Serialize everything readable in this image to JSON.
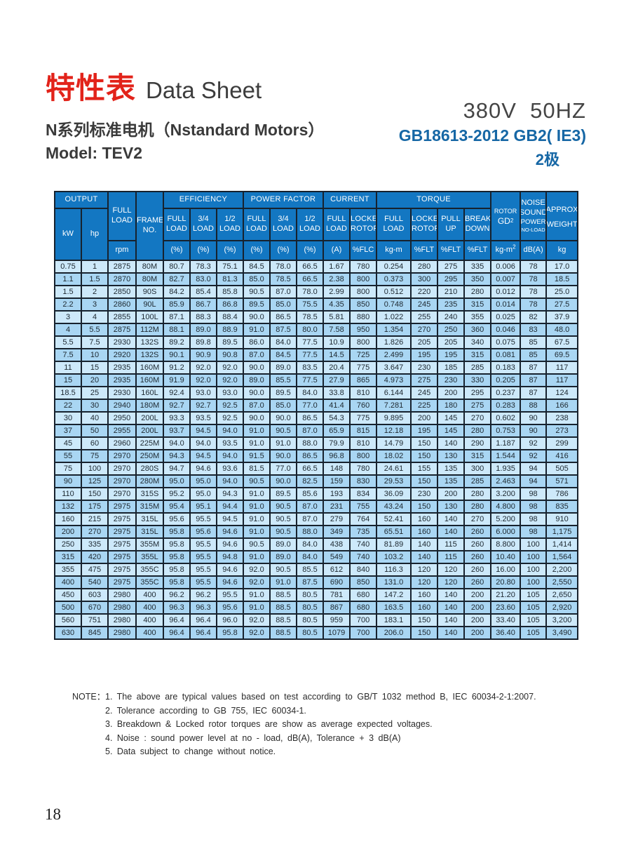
{
  "header": {
    "title_cn": "特性表",
    "title_en": "Data Sheet",
    "subtitle": "N系列标准电机（Nstandard Motors）",
    "model": "Model: TEV2",
    "voltage": "380V  50HZ",
    "standard": "GB18613-2012 GB2( IE3)",
    "poles": "2极"
  },
  "colors": {
    "header_blue": "#1377c2",
    "row_light": "#cde9fa",
    "row_dark": "#a9d6f3",
    "border": "#17222e",
    "title_red": "#e2231a",
    "standard_blue": "#1667a5"
  },
  "table": {
    "header": {
      "output": "OUTPUT",
      "kw": "kW",
      "hp": "hp",
      "full_load": "FULL\nLOAD",
      "rpm": "rpm",
      "frame": "FRAME\nNO.",
      "efficiency": "EFFICIENCY",
      "power_factor": "POWER FACTOR",
      "current": "CURRENT",
      "torque": "TORQUE",
      "rotor": "ROTOR",
      "gd2_base": "GD",
      "gd2_sup": "2",
      "noise_1": "NOISE",
      "noise_2": "SOUND",
      "noise_3": "POWER",
      "noise_4": "NO-LOAD",
      "approx_1": "APPROX",
      "approx_2": "WEIGHT",
      "sub_full": "FULL\nLOAD",
      "sub_34": "3/4\nLOAD",
      "sub_12": "1/2\nLOAD",
      "sub_locked": "LOCKED\nROTOR",
      "sub_pull": "PULL\nUP",
      "sub_break": "BREAK\nDOWN",
      "u_pct": "(%)",
      "u_a": "(A)",
      "u_flc": "%FLC",
      "u_kgm": "kg-m",
      "u_flt": "%FLT",
      "u_kgm2_base": "kg-m",
      "u_kgm2_sup": "2",
      "u_dba": "dB(A)",
      "u_kg": "kg"
    },
    "rows": [
      [
        "0.75",
        "1",
        "2875",
        "80M",
        "80.7",
        "78.3",
        "75.1",
        "84.5",
        "78.0",
        "66.5",
        "1.67",
        "780",
        "0.254",
        "280",
        "275",
        "335",
        "0.006",
        "78",
        "17.0"
      ],
      [
        "1.1",
        "1.5",
        "2870",
        "80M",
        "82.7",
        "83.0",
        "81.3",
        "85.0",
        "78.5",
        "66.5",
        "2.38",
        "800",
        "0.373",
        "300",
        "295",
        "350",
        "0.007",
        "78",
        "18.5"
      ],
      [
        "1.5",
        "2",
        "2850",
        "90S",
        "84.2",
        "85.4",
        "85.8",
        "90.5",
        "87.0",
        "78.0",
        "2.99",
        "800",
        "0.512",
        "220",
        "210",
        "280",
        "0.012",
        "78",
        "25.0"
      ],
      [
        "2.2",
        "3",
        "2860",
        "90L",
        "85.9",
        "86.7",
        "86.8",
        "89.5",
        "85.0",
        "75.5",
        "4.35",
        "850",
        "0.748",
        "245",
        "235",
        "315",
        "0.014",
        "78",
        "27.5"
      ],
      [
        "3",
        "4",
        "2855",
        "100L",
        "87.1",
        "88.3",
        "88.4",
        "90.0",
        "86.5",
        "78.5",
        "5.81",
        "880",
        "1.022",
        "255",
        "240",
        "355",
        "0.025",
        "82",
        "37.9"
      ],
      [
        "4",
        "5.5",
        "2875",
        "112M",
        "88.1",
        "89.0",
        "88.9",
        "91.0",
        "87.5",
        "80.0",
        "7.58",
        "950",
        "1.354",
        "270",
        "250",
        "360",
        "0.046",
        "83",
        "48.0"
      ],
      [
        "5.5",
        "7.5",
        "2930",
        "132S",
        "89.2",
        "89.8",
        "89.5",
        "86.0",
        "84.0",
        "77.5",
        "10.9",
        "800",
        "1.826",
        "205",
        "205",
        "340",
        "0.075",
        "85",
        "67.5"
      ],
      [
        "7.5",
        "10",
        "2920",
        "132S",
        "90.1",
        "90.9",
        "90.8",
        "87.0",
        "84.5",
        "77.5",
        "14.5",
        "725",
        "2.499",
        "195",
        "195",
        "315",
        "0.081",
        "85",
        "69.5"
      ],
      [
        "11",
        "15",
        "2935",
        "160M",
        "91.2",
        "92.0",
        "92.0",
        "90.0",
        "89.0",
        "83.5",
        "20.4",
        "775",
        "3.647",
        "230",
        "185",
        "285",
        "0.183",
        "87",
        "117"
      ],
      [
        "15",
        "20",
        "2935",
        "160M",
        "91.9",
        "92.0",
        "92.0",
        "89.0",
        "85.5",
        "77.5",
        "27.9",
        "865",
        "4.973",
        "275",
        "230",
        "330",
        "0.205",
        "87",
        "117"
      ],
      [
        "18.5",
        "25",
        "2930",
        "160L",
        "92.4",
        "93.0",
        "93.0",
        "90.0",
        "89.5",
        "84.0",
        "33.8",
        "810",
        "6.144",
        "245",
        "200",
        "295",
        "0.237",
        "87",
        "124"
      ],
      [
        "22",
        "30",
        "2940",
        "180M",
        "92.7",
        "92.7",
        "92.5",
        "87.0",
        "85.0",
        "77.0",
        "41.4",
        "760",
        "7.281",
        "225",
        "180",
        "275",
        "0.283",
        "88",
        "166"
      ],
      [
        "30",
        "40",
        "2950",
        "200L",
        "93.3",
        "93.5",
        "92.5",
        "90.0",
        "90.0",
        "86.5",
        "54.3",
        "775",
        "9.895",
        "200",
        "145",
        "270",
        "0.602",
        "90",
        "238"
      ],
      [
        "37",
        "50",
        "2955",
        "200L",
        "93.7",
        "94.5",
        "94.0",
        "91.0",
        "90.5",
        "87.0",
        "65.9",
        "815",
        "12.18",
        "195",
        "145",
        "280",
        "0.753",
        "90",
        "273"
      ],
      [
        "45",
        "60",
        "2960",
        "225M",
        "94.0",
        "94.0",
        "93.5",
        "91.0",
        "91.0",
        "88.0",
        "79.9",
        "810",
        "14.79",
        "150",
        "140",
        "290",
        "1.187",
        "92",
        "299"
      ],
      [
        "55",
        "75",
        "2970",
        "250M",
        "94.3",
        "94.5",
        "94.0",
        "91.5",
        "90.0",
        "86.5",
        "96.8",
        "800",
        "18.02",
        "150",
        "130",
        "315",
        "1.544",
        "92",
        "416"
      ],
      [
        "75",
        "100",
        "2970",
        "280S",
        "94.7",
        "94.6",
        "93.6",
        "81.5",
        "77.0",
        "66.5",
        "148",
        "780",
        "24.61",
        "155",
        "135",
        "300",
        "1.935",
        "94",
        "505"
      ],
      [
        "90",
        "125",
        "2970",
        "280M",
        "95.0",
        "95.0",
        "94.0",
        "90.5",
        "90.0",
        "82.5",
        "159",
        "830",
        "29.53",
        "150",
        "135",
        "285",
        "2.463",
        "94",
        "571"
      ],
      [
        "110",
        "150",
        "2970",
        "315S",
        "95.2",
        "95.0",
        "94.3",
        "91.0",
        "89.5",
        "85.6",
        "193",
        "834",
        "36.09",
        "230",
        "200",
        "280",
        "3.200",
        "98",
        "786"
      ],
      [
        "132",
        "175",
        "2975",
        "315M",
        "95.4",
        "95.1",
        "94.4",
        "91.0",
        "90.5",
        "87.0",
        "231",
        "755",
        "43.24",
        "150",
        "130",
        "280",
        "4.800",
        "98",
        "835"
      ],
      [
        "160",
        "215",
        "2975",
        "315L",
        "95.6",
        "95.5",
        "94.5",
        "91.0",
        "90.5",
        "87.0",
        "279",
        "764",
        "52.41",
        "160",
        "140",
        "270",
        "5.200",
        "98",
        "910"
      ],
      [
        "200",
        "270",
        "2975",
        "315L",
        "95.8",
        "95.6",
        "94.6",
        "91.0",
        "90.5",
        "88.0",
        "349",
        "735",
        "65.51",
        "160",
        "140",
        "260",
        "6.000",
        "98",
        "1,175"
      ],
      [
        "250",
        "335",
        "2975",
        "355M",
        "95.8",
        "95.5",
        "94.6",
        "90.5",
        "89.0",
        "84.0",
        "438",
        "740",
        "81.89",
        "140",
        "115",
        "260",
        "8.800",
        "100",
        "1,414"
      ],
      [
        "315",
        "420",
        "2975",
        "355L",
        "95.8",
        "95.5",
        "94.8",
        "91.0",
        "89.0",
        "84.0",
        "549",
        "740",
        "103.2",
        "140",
        "115",
        "260",
        "10.40",
        "100",
        "1,564"
      ],
      [
        "355",
        "475",
        "2975",
        "355C",
        "95.8",
        "95.5",
        "94.6",
        "92.0",
        "90.5",
        "85.5",
        "612",
        "840",
        "116.3",
        "120",
        "120",
        "260",
        "16.00",
        "100",
        "2,200"
      ],
      [
        "400",
        "540",
        "2975",
        "355C",
        "95.8",
        "95.5",
        "94.6",
        "92.0",
        "91.0",
        "87.5",
        "690",
        "850",
        "131.0",
        "120",
        "120",
        "260",
        "20.80",
        "100",
        "2,550"
      ],
      [
        "450",
        "603",
        "2980",
        "400",
        "96.2",
        "96.2",
        "95.5",
        "91.0",
        "88.5",
        "80.5",
        "781",
        "680",
        "147.2",
        "160",
        "140",
        "200",
        "21.20",
        "105",
        "2,650"
      ],
      [
        "500",
        "670",
        "2980",
        "400",
        "96.3",
        "96.3",
        "95.6",
        "91.0",
        "88.5",
        "80.5",
        "867",
        "680",
        "163.5",
        "160",
        "140",
        "200",
        "23.60",
        "105",
        "2,920"
      ],
      [
        "560",
        "751",
        "2980",
        "400",
        "96.4",
        "96.4",
        "96.0",
        "92.0",
        "88.5",
        "80.5",
        "959",
        "700",
        "183.1",
        "150",
        "140",
        "200",
        "33.40",
        "105",
        "3,200"
      ],
      [
        "630",
        "845",
        "2980",
        "400",
        "96.4",
        "96.4",
        "95.8",
        "92.0",
        "88.5",
        "80.5",
        "1079",
        "700",
        "206.0",
        "150",
        "140",
        "200",
        "36.40",
        "105",
        "3,490"
      ]
    ]
  },
  "notes": {
    "label": "NOTE：",
    "items": [
      "1. The above are typical values based on test according to GB/T 1032 method B, IEC 60034-2-1:2007.",
      "2. Tolerance according to GB 755, IEC 60034-1.",
      "3. Breakdown & Locked rotor torques are show as average expected voltages.",
      "4. Noise : sound power level at no - load, dB(A), Tolerance + 3 dB(A)",
      "5. Data subject to change without notice."
    ]
  },
  "page": {
    "number": "18"
  }
}
